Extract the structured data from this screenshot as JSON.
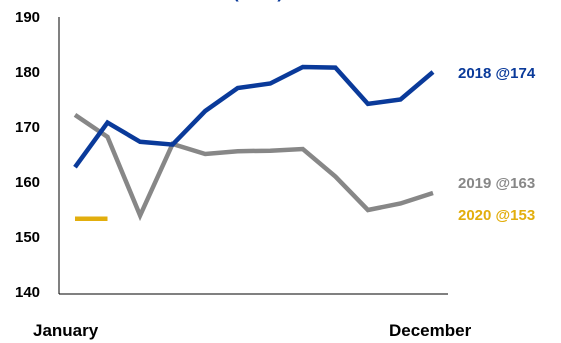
{
  "chart_data": {
    "type": "line",
    "title": "(…/…)",
    "x_start_label": "January",
    "x_end_label": "December",
    "ylim": [
      140,
      190
    ],
    "yticks": [
      "190",
      "180",
      "170",
      "160",
      "150",
      "140"
    ],
    "ytick_values": [
      190,
      180,
      170,
      160,
      150,
      140
    ],
    "grid": false,
    "x_count": 12,
    "series": [
      {
        "name": "2018",
        "label": "2018 @174",
        "color": "#0a3a9a",
        "values": [
          162.7,
          170.8,
          167.3,
          166.8,
          172.9,
          177.1,
          177.9,
          180.9,
          180.8,
          174.2,
          175.0,
          180.0
        ]
      },
      {
        "name": "2019",
        "label": "2019 @163",
        "color": "#878787",
        "values": [
          172.2,
          168.2,
          153.9,
          166.9,
          165.1,
          165.6,
          165.7,
          166.0,
          161.0,
          154.9,
          156.1,
          158.0
        ]
      },
      {
        "name": "2020",
        "label": "2020 @153",
        "color": "#e2ae0d",
        "values": [
          153.3,
          153.3
        ]
      }
    ]
  }
}
